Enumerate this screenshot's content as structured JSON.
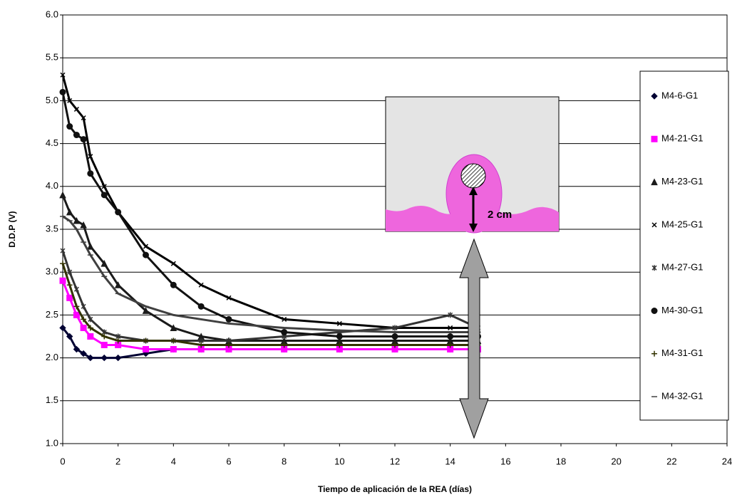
{
  "chart_data": {
    "type": "line",
    "x_label": "Tiempo de aplicación de la REA (días)",
    "y_label": "D.D.P (V)",
    "annotation": "2 cm",
    "x": [
      0,
      0.25,
      0.5,
      0.75,
      1,
      1.5,
      2,
      3,
      4,
      5,
      6,
      8,
      10,
      12,
      14,
      15
    ],
    "series": [
      {
        "name": "M4-6-G1",
        "color": "#000033",
        "marker": "diamond",
        "values": [
          2.35,
          2.25,
          2.1,
          2.05,
          2.0,
          2.0,
          2.0,
          2.05,
          2.1,
          2.1,
          2.1,
          2.1,
          2.1,
          2.1,
          2.1,
          2.1
        ]
      },
      {
        "name": "M4-21-G1",
        "color": "#ff00ff",
        "marker": "square",
        "values": [
          2.9,
          2.7,
          2.5,
          2.35,
          2.25,
          2.15,
          2.15,
          2.1,
          2.1,
          2.1,
          2.1,
          2.1,
          2.1,
          2.1,
          2.1,
          2.1
        ]
      },
      {
        "name": "M4-23-G1",
        "color": "#1a1a1a",
        "marker": "triangle",
        "values": [
          3.9,
          3.7,
          3.6,
          3.55,
          3.3,
          3.1,
          2.85,
          2.55,
          2.35,
          2.25,
          2.2,
          2.2,
          2.2,
          2.2,
          2.2,
          2.2
        ]
      },
      {
        "name": "M4-25-G1",
        "color": "#000000",
        "marker": "x",
        "values": [
          5.3,
          5.0,
          4.9,
          4.8,
          4.35,
          4.0,
          3.7,
          3.3,
          3.1,
          2.85,
          2.7,
          2.45,
          2.4,
          2.35,
          2.35,
          2.35
        ]
      },
      {
        "name": "M4-27-G1",
        "color": "#333333",
        "marker": "star",
        "values": [
          3.25,
          3.0,
          2.8,
          2.6,
          2.45,
          2.3,
          2.25,
          2.2,
          2.2,
          2.2,
          2.2,
          2.25,
          2.3,
          2.35,
          2.5,
          2.35
        ]
      },
      {
        "name": "M4-30-G1",
        "color": "#111111",
        "marker": "circle",
        "values": [
          5.1,
          4.7,
          4.6,
          4.55,
          4.15,
          3.9,
          3.7,
          3.2,
          2.85,
          2.6,
          2.45,
          2.3,
          2.25,
          2.25,
          2.25,
          2.25
        ]
      },
      {
        "name": "M4-31-G1",
        "color": "#333300",
        "marker": "plus",
        "values": [
          3.1,
          2.85,
          2.6,
          2.45,
          2.35,
          2.25,
          2.2,
          2.2,
          2.2,
          2.15,
          2.15,
          2.15,
          2.15,
          2.15,
          2.15,
          2.15
        ]
      },
      {
        "name": "M4-32-G1",
        "color": "#404040",
        "marker": "dash",
        "values": [
          3.65,
          3.6,
          3.5,
          3.35,
          3.2,
          2.95,
          2.75,
          2.6,
          2.5,
          2.45,
          2.4,
          2.35,
          2.32,
          2.3,
          2.3,
          2.3
        ]
      }
    ],
    "xlim": [
      0,
      24
    ],
    "xticks": [
      0,
      2,
      4,
      6,
      8,
      10,
      12,
      14,
      16,
      18,
      20,
      22,
      24
    ],
    "ylim": [
      1,
      6
    ],
    "yticks": [
      {
        "value": 1,
        "label": "1.0"
      },
      {
        "value": 1.5,
        "label": "1.5"
      },
      {
        "value": 2,
        "label": "2.0"
      },
      {
        "value": 2.5,
        "label": "2.5"
      },
      {
        "value": 3,
        "label": "3.0"
      },
      {
        "value": 3.5,
        "label": "3.5"
      },
      {
        "value": 4,
        "label": "4.0"
      },
      {
        "value": 4.5,
        "label": "4.5"
      },
      {
        "value": 5,
        "label": "5.0"
      },
      {
        "value": 5.5,
        "label": "5.5"
      },
      {
        "value": 6,
        "label": "6.0"
      }
    ],
    "grid": true
  }
}
